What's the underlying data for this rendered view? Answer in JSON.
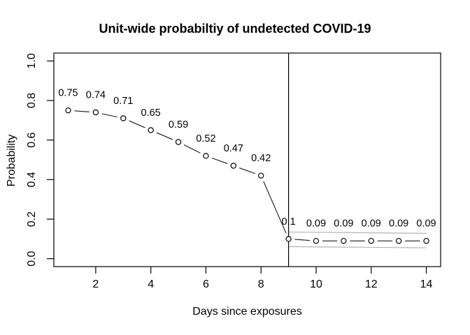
{
  "figure": {
    "background": "#ffffff"
  },
  "chart_data": {
    "type": "line",
    "title": "Unit-wide probabiltiy of undetected COVID-19",
    "xlabel": "Days since exposures",
    "ylabel": "Probability",
    "x": [
      1,
      2,
      3,
      4,
      5,
      6,
      7,
      8,
      9,
      10,
      11,
      12,
      13,
      14
    ],
    "values": [
      0.75,
      0.74,
      0.71,
      0.65,
      0.59,
      0.52,
      0.47,
      0.42,
      0.1,
      0.09,
      0.09,
      0.09,
      0.09,
      0.09
    ],
    "point_labels": [
      "0.75",
      "0.74",
      "0.71",
      "0.65",
      "0.59",
      "0.52",
      "0.47",
      "0.42",
      "0.1",
      "0.09",
      "0.09",
      "0.09",
      "0.09",
      "0.09"
    ],
    "xticks": [
      2,
      4,
      6,
      8,
      10,
      12,
      14
    ],
    "ytick_labels": [
      "0.0",
      "0.2",
      "0.4",
      "0.6",
      "0.8",
      "1.0"
    ],
    "xlim": [
      0.48,
      14.52
    ],
    "ylim": [
      -0.04,
      1.04
    ],
    "grid": false,
    "legend": "none",
    "marker": "open-circle",
    "line_style": "segments-between-points",
    "vline_x": 9,
    "ci_band": {
      "x": [
        9,
        14
      ],
      "upper": [
        0.135,
        0.128
      ],
      "lower": [
        0.061,
        0.055
      ]
    },
    "colors": {
      "series": "#1a1a1a",
      "point_stroke": "#000000",
      "point_fill": "#ffffff",
      "band": "#b4b4b4",
      "vline": "#000000",
      "axis": "#000000",
      "text": "#000000",
      "background": "#ffffff"
    }
  }
}
